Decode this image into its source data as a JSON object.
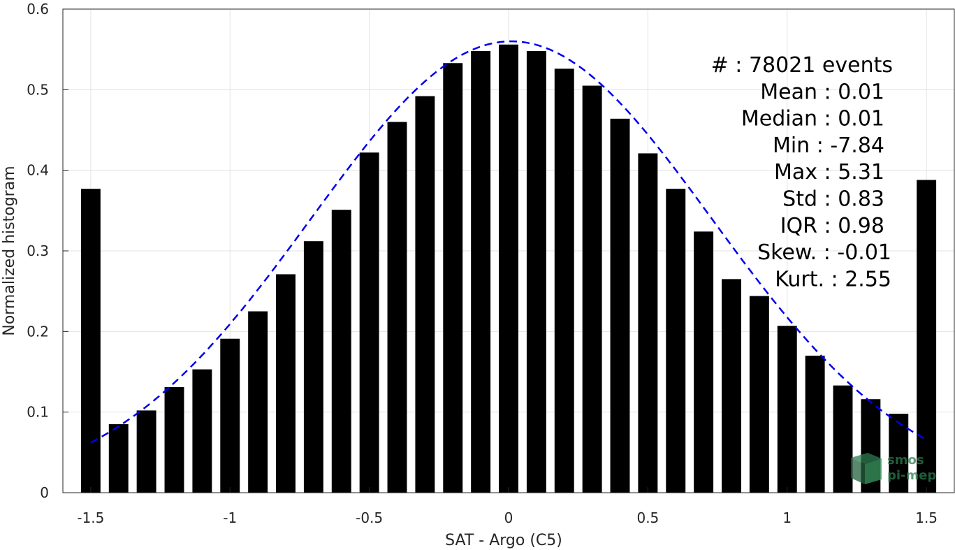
{
  "chart_data": {
    "type": "bar",
    "xlabel": "SAT - Argo (C5)",
    "ylabel": "Normalized histogram",
    "xlim": [
      -1.6,
      1.6
    ],
    "ylim": [
      0,
      0.6
    ],
    "xticks": [
      -1.5,
      -1,
      -0.5,
      0,
      0.5,
      1,
      1.5
    ],
    "xtick_labels": [
      "-1.5",
      "-1",
      "-0.5",
      "0",
      "0.5",
      "1",
      "1.5"
    ],
    "yticks": [
      0,
      0.1,
      0.2,
      0.3,
      0.4,
      0.5,
      0.6
    ],
    "ytick_labels": [
      "0",
      "0.1",
      "0.2",
      "0.3",
      "0.4",
      "0.5",
      "0.6"
    ],
    "grid": true,
    "bar_width": 0.07,
    "bars": [
      {
        "x": -1.5,
        "y": 0.377
      },
      {
        "x": -1.4,
        "y": 0.085
      },
      {
        "x": -1.3,
        "y": 0.102
      },
      {
        "x": -1.2,
        "y": 0.131
      },
      {
        "x": -1.1,
        "y": 0.153
      },
      {
        "x": -1.0,
        "y": 0.191
      },
      {
        "x": -0.9,
        "y": 0.225
      },
      {
        "x": -0.8,
        "y": 0.271
      },
      {
        "x": -0.7,
        "y": 0.312
      },
      {
        "x": -0.6,
        "y": 0.351
      },
      {
        "x": -0.5,
        "y": 0.422
      },
      {
        "x": -0.4,
        "y": 0.46
      },
      {
        "x": -0.3,
        "y": 0.492
      },
      {
        "x": -0.2,
        "y": 0.533
      },
      {
        "x": -0.1,
        "y": 0.548
      },
      {
        "x": 0.0,
        "y": 0.556
      },
      {
        "x": 0.1,
        "y": 0.548
      },
      {
        "x": 0.2,
        "y": 0.526
      },
      {
        "x": 0.3,
        "y": 0.505
      },
      {
        "x": 0.4,
        "y": 0.464
      },
      {
        "x": 0.5,
        "y": 0.421
      },
      {
        "x": 0.6,
        "y": 0.377
      },
      {
        "x": 0.7,
        "y": 0.324
      },
      {
        "x": 0.8,
        "y": 0.265
      },
      {
        "x": 0.9,
        "y": 0.244
      },
      {
        "x": 1.0,
        "y": 0.207
      },
      {
        "x": 1.1,
        "y": 0.17
      },
      {
        "x": 1.2,
        "y": 0.133
      },
      {
        "x": 1.3,
        "y": 0.116
      },
      {
        "x": 1.4,
        "y": 0.098
      },
      {
        "x": 1.5,
        "y": 0.388
      }
    ],
    "gaussian_fit": {
      "mean": 0.01,
      "std": 0.72,
      "peak": 0.56,
      "x_range": [
        -1.5,
        1.5
      ],
      "color": "#0000ee",
      "style": "dashed"
    },
    "bar_color": "#000000",
    "stats_lines": [
      "#  : 78021 events",
      "Mean : 0.01",
      "Median : 0.01",
      "Min : -7.84",
      "Max : 5.31",
      "Std : 0.83",
      "IQR : 0.98",
      "Skew. : -0.01",
      "Kurt. : 2.55"
    ]
  },
  "logo": {
    "line1": "smos",
    "line2": "pi-mep",
    "color": "#2e7d4f"
  }
}
